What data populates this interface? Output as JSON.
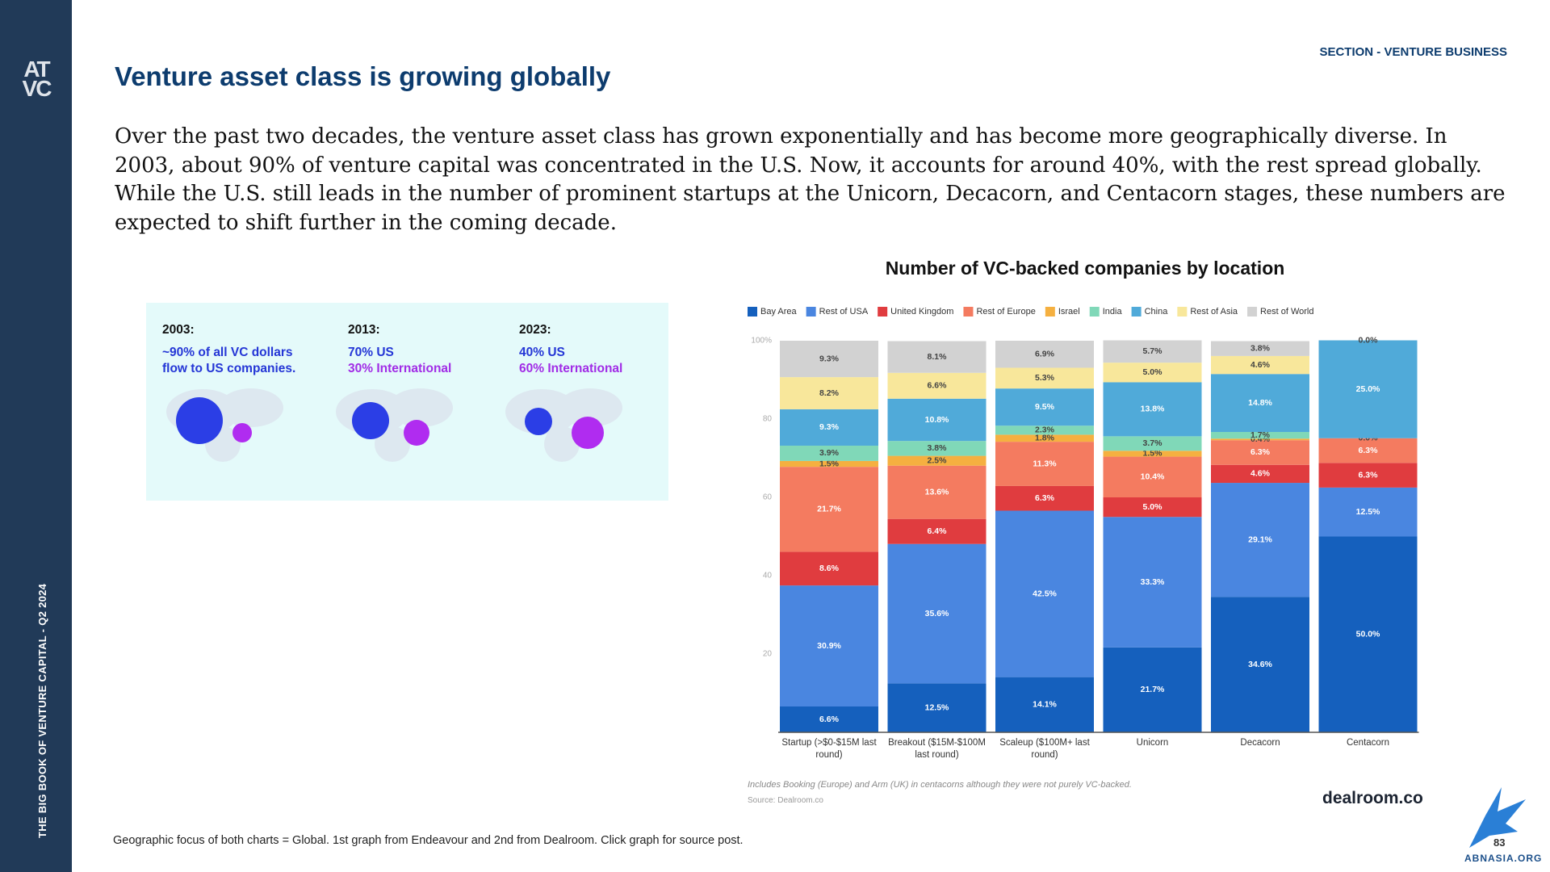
{
  "sidebar": {
    "logo_top": "AT",
    "logo_bottom": "VC",
    "text": "THE BIG BOOK OF VENTURE CAPITAL - Q2 2024"
  },
  "section": "SECTION - VENTURE BUSINESS",
  "title": "Venture asset class is growing globally",
  "paragraph": "Over the past two decades, the venture asset class has grown exponentially and has become more geographically diverse. In 2003, about 90% of venture capital was concentrated in the U.S. Now, it accounts for around 40%, with the rest spread globally. While the U.S. still leads in the number of prominent startups at the Unicorn, Decacorn, and Centacorn stages, these numbers are expected to shift further in the coming decade.",
  "infographic": {
    "columns": [
      {
        "year": "2003:",
        "lines": [
          "~90% of all VC dollars",
          "flow to US companies."
        ]
      },
      {
        "year": "2013:",
        "lines": [
          "70% US",
          "30% International"
        ]
      },
      {
        "year": "2023:",
        "lines": [
          "40% US",
          "60% International"
        ]
      }
    ]
  },
  "chart_data": {
    "type": "stacked_bar",
    "title": "Number of VC-backed companies by location",
    "categories": [
      "Startup (>$0-$15M last round)",
      "Breakout ($15M-$100M last round)",
      "Scaleup ($100M+ last round)",
      "Unicorn",
      "Decacorn",
      "Centacorn"
    ],
    "ylim": [
      0,
      100
    ],
    "yticks": [
      20,
      40,
      60,
      80,
      {
        "value": 100,
        "label": "100%"
      }
    ],
    "series": [
      {
        "name": "Bay Area",
        "color": "#1560bd",
        "values": [
          6.6,
          12.5,
          14.1,
          21.7,
          34.6,
          50.0
        ],
        "value_labels": [
          "6.6%",
          "12.5%",
          "14.1%",
          "21.7%",
          "34.6%",
          "50.0%"
        ]
      },
      {
        "name": "Rest of USA",
        "color": "#4a86e0",
        "values": [
          30.9,
          35.6,
          42.5,
          33.3,
          29.1,
          12.5
        ],
        "value_labels": [
          "30.9%",
          "35.6%",
          "42.5%",
          "33.3%",
          "29.1%",
          "12.5%"
        ]
      },
      {
        "name": "United Kingdom",
        "color": "#e03c3f",
        "values": [
          8.6,
          6.4,
          6.3,
          5.0,
          4.6,
          6.3
        ],
        "value_labels": [
          "8.6%",
          "6.4%",
          "6.3%",
          "5.0%",
          "4.6%",
          "6.3%"
        ]
      },
      {
        "name": "Rest of Europe",
        "color": "#f47b60",
        "values": [
          21.7,
          13.6,
          11.3,
          10.4,
          6.3,
          6.3
        ],
        "value_labels": [
          "21.7%",
          "13.6%",
          "11.3%",
          "10.4%",
          "6.3%",
          "6.3%"
        ]
      },
      {
        "name": "Israel",
        "color": "#f5b040",
        "values": [
          1.5,
          2.5,
          1.8,
          1.5,
          0.4,
          0.0
        ],
        "value_labels": [
          "1.5%",
          "2.5%",
          "1.8%",
          "1.5%",
          "0.4%",
          "0.0%"
        ]
      },
      {
        "name": "India",
        "color": "#80d8b8",
        "values": [
          3.9,
          3.8,
          2.3,
          3.7,
          1.7,
          null
        ],
        "value_labels": [
          "3.9%",
          "3.8%",
          "2.3%",
          "3.7%",
          "1.7%",
          null
        ]
      },
      {
        "name": "China",
        "color": "#50aad9",
        "values": [
          9.3,
          10.8,
          9.5,
          13.8,
          14.8,
          25.0
        ],
        "value_labels": [
          "9.3%",
          "10.8%",
          "9.5%",
          "13.8%",
          "14.8%",
          "25.0%"
        ]
      },
      {
        "name": "Rest of Asia",
        "color": "#f8e79b",
        "values": [
          8.2,
          6.6,
          5.3,
          5.0,
          4.6,
          null
        ],
        "value_labels": [
          "8.2%",
          "6.6%",
          "5.3%",
          "5.0%",
          "4.6%",
          null
        ]
      },
      {
        "name": "Rest of World",
        "color": "#d2d2d2",
        "values": [
          9.3,
          8.1,
          6.9,
          5.7,
          3.8,
          0.0
        ],
        "value_labels": [
          "9.3%",
          "8.1%",
          "6.9%",
          "5.7%",
          "3.8%",
          "0.0%"
        ]
      }
    ],
    "note": "Includes Booking (Europe) and Arm (UK) in centacorns although they were not purely VC-backed.",
    "source": "Source: Dealroom.co",
    "brand": "dealroom.co"
  },
  "caption": "Geographic focus of both charts = Global. 1st graph from Endeavour and 2nd from Dealroom. Click graph for source post.",
  "page_number": "83",
  "watermark": "ABNASIA.ORG"
}
